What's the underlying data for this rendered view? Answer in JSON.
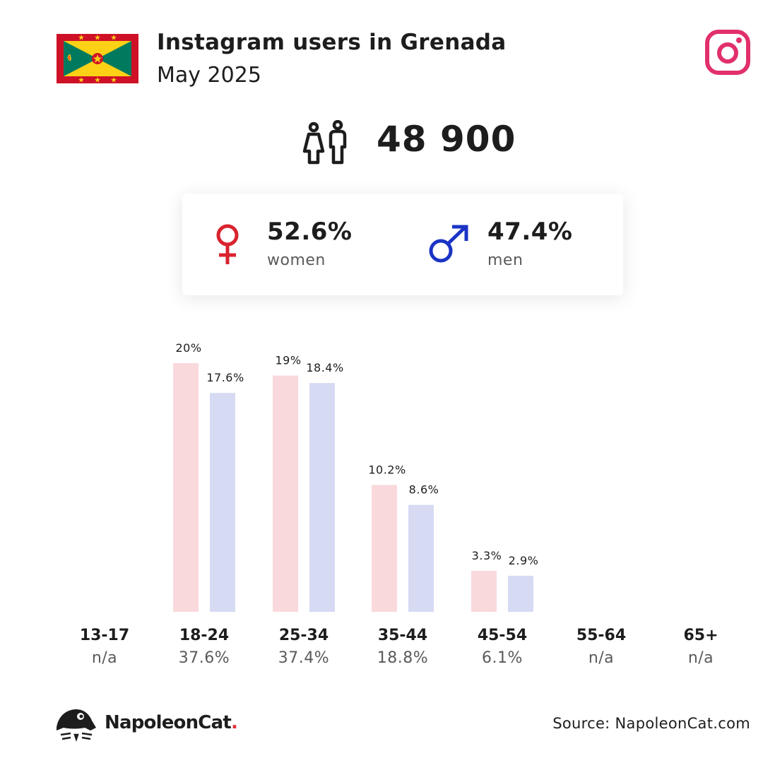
{
  "header": {
    "title": "Instagram users in Grenada",
    "subtitle": "May 2025"
  },
  "summary": {
    "total_users": "48 900"
  },
  "gender": {
    "women_pct": "52.6%",
    "women_label": "women",
    "men_pct": "47.4%",
    "men_label": "men"
  },
  "colors": {
    "women_bar": "#f9d9dc",
    "men_bar": "#d6daf3",
    "women_symbol": "#d9232e",
    "men_symbol": "#1a33c4",
    "instagram": "#e1306c"
  },
  "icons": {
    "flag": "grenada-flag-icon",
    "platform": "instagram-icon",
    "users": "people-icon",
    "female": "female-symbol-icon",
    "male": "male-symbol-icon",
    "brand": "napoleoncat-logo-icon"
  },
  "chart_data": {
    "type": "bar",
    "categories": [
      "13-17",
      "18-24",
      "25-34",
      "35-44",
      "45-54",
      "55-64",
      "65+"
    ],
    "group_totals": [
      "n/a",
      "37.6%",
      "37.4%",
      "18.8%",
      "6.1%",
      "n/a",
      "n/a"
    ],
    "series": [
      {
        "name": "women",
        "values": [
          null,
          20,
          19,
          10.2,
          3.3,
          null,
          null
        ],
        "labels": [
          null,
          "20%",
          "19%",
          "10.2%",
          "3.3%",
          null,
          null
        ]
      },
      {
        "name": "men",
        "values": [
          null,
          17.6,
          18.4,
          8.6,
          2.9,
          null,
          null
        ],
        "labels": [
          null,
          "17.6%",
          "18.4%",
          "8.6%",
          "2.9%",
          null,
          null
        ]
      }
    ]
  },
  "footer": {
    "brand": "NapoleonCat",
    "brand_dot": ".",
    "source": "Source: NapoleonCat.com"
  }
}
